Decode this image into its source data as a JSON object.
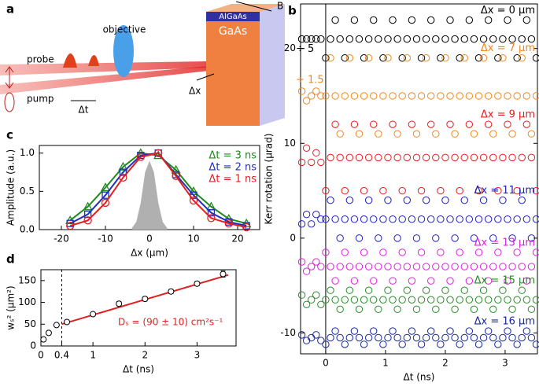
{
  "schematic": {
    "label": "a",
    "objective": "objective",
    "probe": "probe",
    "pump": "pump",
    "delay": "Δt",
    "offset": "Δx",
    "layer_top": "AlGaAs",
    "layer_bottom": "GaAs",
    "field": "B"
  },
  "chart_data": [
    {
      "type": "scatter",
      "panel_label": "b",
      "xlabel": "Δt (ns)",
      "ylabel": "Kerr rotation (µrad)",
      "x": [
        -0.4,
        -0.32,
        -0.24,
        -0.16,
        -0.08,
        0,
        0.08,
        0.16,
        0.24,
        0.32,
        0.4,
        0.48,
        0.56,
        0.64,
        0.72,
        0.8,
        0.88,
        0.96,
        1.04,
        1.12,
        1.2,
        1.28,
        1.36,
        1.44,
        1.52,
        1.6,
        1.68,
        1.76,
        1.84,
        1.92,
        2,
        2.08,
        2.16,
        2.24,
        2.32,
        2.4,
        2.48,
        2.56,
        2.64,
        2.72,
        2.8,
        2.88,
        2.96,
        3.04,
        3.12,
        3.2,
        3.28,
        3.36,
        3.44,
        3.52
      ],
      "series": [
        {
          "name": "Δx = 0 µm",
          "color": "#000000",
          "values": [
            21,
            21,
            21,
            21,
            21,
            19,
            21,
            23,
            21,
            19,
            21,
            23,
            21,
            19,
            21,
            23,
            21,
            19,
            21,
            23,
            21,
            19,
            21,
            23,
            21,
            19,
            21,
            23,
            21,
            19,
            21,
            23,
            21,
            19,
            21,
            23,
            21,
            19,
            21,
            23,
            21,
            19,
            21,
            23,
            21,
            19,
            21,
            23,
            21,
            19
          ]
        },
        {
          "name": "Δx = 7 µm",
          "color": "#f0881c",
          "values": [
            15.5,
            14.5,
            15,
            15.5,
            15,
            15,
            19,
            15,
            11,
            15,
            19,
            15,
            11,
            15,
            19,
            15,
            11,
            15,
            19,
            15,
            11,
            15,
            19,
            15,
            11,
            15,
            19,
            15,
            11,
            15,
            19,
            15,
            11,
            15,
            19,
            15,
            11,
            15,
            19,
            15,
            11,
            15,
            19,
            15,
            11,
            15,
            19,
            15,
            11,
            15
          ]
        },
        {
          "name": "Δx = 9 µm",
          "color": "#e02020",
          "values": [
            8,
            9.5,
            8,
            9,
            8,
            5,
            8.5,
            12,
            8.5,
            5,
            8.5,
            12,
            8.5,
            5,
            8.5,
            12,
            8.5,
            5,
            8.5,
            12,
            8.5,
            5,
            8.5,
            12,
            8.5,
            5,
            8.5,
            12,
            8.5,
            5,
            8.5,
            12,
            8.5,
            5,
            8.5,
            12,
            8.5,
            5,
            8.5,
            12,
            8.5,
            5,
            8.5,
            12,
            8.5,
            5,
            8.5,
            12,
            8.5,
            5
          ]
        },
        {
          "name": "Δx = 11 µm",
          "color": "#2020c0",
          "values": [
            1.5,
            2.5,
            1.5,
            2.5,
            2,
            2,
            4,
            2,
            0,
            2,
            4,
            2,
            0,
            2,
            4,
            2,
            0,
            2,
            4,
            2,
            0,
            2,
            4,
            2,
            0,
            2,
            4,
            2,
            0,
            2,
            4,
            2,
            0,
            2,
            4,
            2,
            0,
            2,
            4,
            2,
            0,
            2,
            4,
            2,
            0,
            2,
            4,
            2,
            0,
            2
          ]
        },
        {
          "name": "Δx = 13 µm",
          "color": "#e020e0",
          "values": [
            -2.5,
            -3.5,
            -3,
            -2.5,
            -3,
            -1.5,
            -3,
            -4.5,
            -3,
            -1.5,
            -3,
            -4.5,
            -3,
            -1.5,
            -3,
            -4.5,
            -3,
            -1.5,
            -3,
            -4.5,
            -3,
            -1.5,
            -3,
            -4.5,
            -3,
            -1.5,
            -3,
            -4.5,
            -3,
            -1.5,
            -3,
            -4.5,
            -3,
            -1.5,
            -3,
            -4.5,
            -3,
            -1.5,
            -3,
            -4.5,
            -3,
            -1.5,
            -3,
            -4.5,
            -3,
            -1.5,
            -3,
            -4.5,
            -3,
            -1.5
          ]
        },
        {
          "name": "Δx = 15 µm",
          "color": "#2a8a2a",
          "values": [
            -6,
            -7,
            -6.5,
            -6,
            -7,
            -6.5,
            -5.5,
            -6.5,
            -7.5,
            -6.5,
            -5.5,
            -6.5,
            -7.5,
            -6.5,
            -5.5,
            -6.5,
            -7.5,
            -6.5,
            -5.5,
            -6.5,
            -7.5,
            -6.5,
            -5.5,
            -6.5,
            -7.5,
            -6.5,
            -5.5,
            -6.5,
            -7.5,
            -6.5,
            -5.5,
            -6.5,
            -7.5,
            -6.5,
            -5.5,
            -6.5,
            -7.5,
            -6.5,
            -5.5,
            -6.5,
            -7.5,
            -6.5,
            -5.5,
            -6.5,
            -7.5,
            -6.5,
            -5.5,
            -6.5,
            -7.5,
            -6.5
          ]
        },
        {
          "name": "Δx = 16 µm",
          "color": "#1a2a9a",
          "values": [
            -10.2,
            -10.8,
            -10.5,
            -10.2,
            -10.8,
            -11.2,
            -10.5,
            -9.8,
            -10.5,
            -11.2,
            -10.5,
            -9.8,
            -10.5,
            -11.2,
            -10.5,
            -9.8,
            -10.5,
            -11.2,
            -10.5,
            -9.8,
            -10.5,
            -11.2,
            -10.5,
            -9.8,
            -10.5,
            -11.2,
            -10.5,
            -9.8,
            -10.5,
            -11.2,
            -10.5,
            -9.8,
            -10.5,
            -11.2,
            -10.5,
            -9.8,
            -10.5,
            -11.2,
            -10.5,
            -9.8,
            -10.5,
            -11.2,
            -10.5,
            -9.8,
            -10.5,
            -11.2,
            -10.5,
            -9.8,
            -10.5,
            -11.2
          ]
        }
      ],
      "annotations": [
        "÷ 5",
        "÷ 1.5"
      ],
      "xlim": [
        -0.42,
        3.54
      ],
      "ylim": [
        -12.2,
        24.7
      ],
      "xticks": [
        0,
        1,
        2,
        3
      ],
      "yticks": [
        -10,
        0,
        10,
        20
      ]
    },
    {
      "type": "line",
      "panel_label": "c",
      "xlabel": "Δx (µm)",
      "ylabel": "Amplitude (a.u.)",
      "series": [
        {
          "name": "Δt = 3 ns",
          "color": "#1f8a1f",
          "marker": "triangle",
          "x": [
            -18,
            -14,
            -10,
            -6,
            -2,
            2,
            6,
            10,
            14,
            18,
            22
          ],
          "values": [
            0.12,
            0.3,
            0.55,
            0.82,
            1.0,
            0.97,
            0.78,
            0.5,
            0.3,
            0.14,
            0.08
          ]
        },
        {
          "name": "Δt = 2 ns",
          "color": "#1f2fc0",
          "marker": "square",
          "x": [
            -18,
            -14,
            -10,
            -6,
            -2,
            2,
            6,
            10,
            14,
            18,
            22
          ],
          "values": [
            0.08,
            0.2,
            0.45,
            0.75,
            0.97,
            1.0,
            0.72,
            0.45,
            0.22,
            0.1,
            0.05
          ]
        },
        {
          "name": "Δt = 1 ns",
          "color": "#e02020",
          "marker": "circle",
          "x": [
            -18,
            -14,
            -10,
            -6,
            -2,
            2,
            6,
            10,
            14,
            18,
            22
          ],
          "values": [
            0.05,
            0.12,
            0.35,
            0.68,
            0.95,
            1.0,
            0.7,
            0.38,
            0.15,
            0.08,
            0.03
          ]
        },
        {
          "color": "#b0b0b0",
          "fill": true,
          "x": [
            -4,
            -3,
            -2,
            -1,
            0,
            1,
            2,
            3,
            4
          ],
          "values": [
            0.02,
            0.1,
            0.35,
            0.75,
            0.9,
            0.75,
            0.35,
            0.1,
            0.02
          ]
        }
      ],
      "xlim": [
        -25,
        25
      ],
      "ylim": [
        0,
        1.1
      ],
      "xticks": [
        -20,
        -10,
        0,
        10,
        20
      ],
      "yticks": [
        {
          "value": 0,
          "label": "0.0"
        },
        {
          "value": 0.5,
          "label": "0.5"
        },
        {
          "value": 1,
          "label": "1.0"
        }
      ]
    },
    {
      "type": "errorbar",
      "panel_label": "d",
      "xlabel": "Δt (ns)",
      "ylabel": "wₛ² (µm²)",
      "x": [
        0.05,
        0.15,
        0.3,
        0.5,
        1,
        1.5,
        2,
        2.5,
        3,
        3.5
      ],
      "values": [
        15,
        30,
        48,
        55,
        73,
        97,
        108,
        125,
        143,
        165
      ],
      "errors": [
        3,
        3,
        3,
        3,
        4,
        5,
        5,
        5,
        5,
        7
      ],
      "fit": {
        "color": "#e02020",
        "x": [
          0.4,
          3.6
        ],
        "values": [
          50,
          163
        ]
      },
      "annotation": "Dₛ = (90 ± 10) cm²s⁻¹",
      "xlim": [
        0,
        3.75
      ],
      "ylim": [
        0,
        175
      ],
      "xticks": [
        0,
        0.4,
        1,
        2,
        3
      ],
      "yticks": [
        0,
        50,
        100,
        150
      ]
    }
  ]
}
